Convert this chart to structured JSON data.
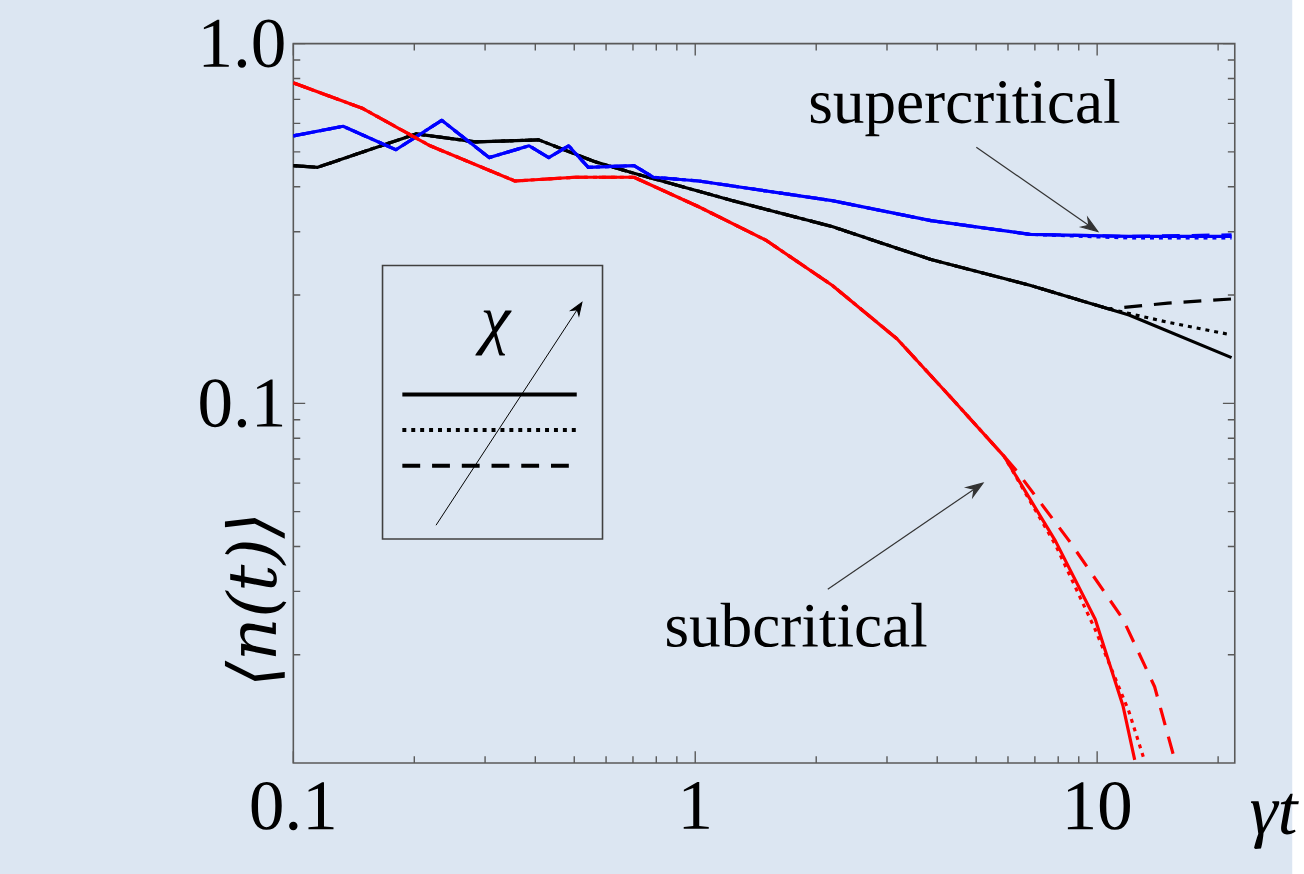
{
  "chart_data": {
    "type": "line",
    "xlabel": "γt",
    "ylabel": "⟨n(t)⟩",
    "log": "xy",
    "xlim": [
      0.1,
      22
    ],
    "ylim": [
      0.01,
      1
    ],
    "xticks": [
      0.1,
      1,
      10
    ],
    "yticks": [
      0.1,
      {
        "value": 1,
        "label": "1.0"
      }
    ],
    "annotations": [
      {
        "text": "supercritical",
        "x": 9.89,
        "y": 0.291
      },
      {
        "text": "subcritical",
        "x": 5.87,
        "y": 0.0712
      },
      "χ"
    ],
    "series": [
      {
        "color": "#000000",
        "line_style": "solid",
        "x": [
          0.1,
          0.115,
          0.202,
          0.284,
          0.408,
          0.561,
          0.704,
          1.24,
          2.19,
          3.86,
          6.8,
          12.0,
          21.6
        ],
        "values": [
          0.458,
          0.453,
          0.561,
          0.533,
          0.54,
          0.47,
          0.436,
          0.366,
          0.31,
          0.251,
          0.213,
          0.176,
          0.134
        ]
      },
      {
        "color": "#000000",
        "line_style": "dotted",
        "x": [
          0.1,
          0.115,
          0.202,
          0.284,
          0.408,
          0.561,
          0.704,
          1.24,
          2.19,
          3.86,
          6.8,
          10.7,
          15.0,
          21.6
        ],
        "values": [
          0.458,
          0.453,
          0.561,
          0.533,
          0.54,
          0.47,
          0.436,
          0.366,
          0.31,
          0.251,
          0.213,
          0.183,
          0.168,
          0.155
        ]
      },
      {
        "color": "#000000",
        "line_style": "dashed",
        "x": [
          0.1,
          0.115,
          0.202,
          0.284,
          0.408,
          0.561,
          0.704,
          1.24,
          2.19,
          3.86,
          6.8,
          10.7,
          15.0,
          21.6
        ],
        "values": [
          0.458,
          0.453,
          0.561,
          0.533,
          0.54,
          0.47,
          0.436,
          0.366,
          0.31,
          0.251,
          0.213,
          0.183,
          0.19,
          0.195
        ]
      },
      {
        "color": "#0000ff",
        "line_style": "solid",
        "x": [
          0.1,
          0.133,
          0.18,
          0.234,
          0.307,
          0.386,
          0.432,
          0.484,
          0.542,
          0.704,
          0.788,
          1.02,
          2.19,
          3.86,
          6.8,
          12.0,
          21.6
        ],
        "values": [
          0.554,
          0.589,
          0.507,
          0.612,
          0.482,
          0.52,
          0.482,
          0.52,
          0.453,
          0.458,
          0.425,
          0.415,
          0.366,
          0.322,
          0.295,
          0.291,
          0.291
        ]
      },
      {
        "color": "#0000ff",
        "line_style": "dotted",
        "x": [
          0.1,
          0.133,
          0.18,
          0.234,
          0.307,
          0.386,
          0.432,
          0.484,
          0.542,
          0.704,
          0.788,
          1.02,
          2.19,
          3.86,
          6.8,
          12.0,
          21.6
        ],
        "values": [
          0.554,
          0.589,
          0.507,
          0.612,
          0.482,
          0.52,
          0.482,
          0.52,
          0.453,
          0.458,
          0.425,
          0.415,
          0.366,
          0.322,
          0.295,
          0.288,
          0.288
        ]
      },
      {
        "color": "#0000ff",
        "line_style": "dashed",
        "x": [
          0.1,
          0.133,
          0.18,
          0.234,
          0.307,
          0.386,
          0.432,
          0.484,
          0.542,
          0.704,
          0.788,
          1.02,
          2.19,
          3.86,
          6.8,
          12.0,
          21.6
        ],
        "values": [
          0.554,
          0.589,
          0.507,
          0.612,
          0.482,
          0.52,
          0.482,
          0.52,
          0.453,
          0.458,
          0.425,
          0.415,
          0.366,
          0.322,
          0.295,
          0.291,
          0.294
        ]
      },
      {
        "color": "#ff0000",
        "line_style": "solid",
        "x": [
          0.1,
          0.149,
          0.219,
          0.356,
          0.501,
          0.704,
          1.02,
          1.5,
          2.19,
          3.18,
          4.32,
          5.87,
          7.88,
          9.89,
          11.6,
          12.4
        ],
        "values": [
          0.778,
          0.66,
          0.52,
          0.415,
          0.425,
          0.425,
          0.352,
          0.284,
          0.213,
          0.151,
          0.104,
          0.0712,
          0.0414,
          0.0251,
          0.0144,
          0.0102
        ]
      },
      {
        "color": "#ff0000",
        "line_style": "dotted",
        "x": [
          0.1,
          0.149,
          0.219,
          0.356,
          0.501,
          0.704,
          1.02,
          1.5,
          2.19,
          3.18,
          4.32,
          5.87,
          7.88,
          9.89,
          12.0,
          13.1
        ],
        "values": [
          0.778,
          0.66,
          0.52,
          0.415,
          0.425,
          0.425,
          0.352,
          0.284,
          0.213,
          0.151,
          0.104,
          0.0712,
          0.0404,
          0.0235,
          0.0139,
          0.0102
        ]
      },
      {
        "color": "#ff0000",
        "line_style": "dashed",
        "x": [
          0.1,
          0.149,
          0.219,
          0.356,
          0.501,
          0.704,
          1.02,
          1.5,
          2.19,
          3.18,
          4.32,
          5.87,
          6.28,
          8.53,
          11.6,
          13.9,
          15.6
        ],
        "values": [
          0.778,
          0.66,
          0.52,
          0.415,
          0.425,
          0.425,
          0.352,
          0.284,
          0.213,
          0.151,
          0.104,
          0.0712,
          0.0652,
          0.0414,
          0.0251,
          0.0163,
          0.0102
        ]
      }
    ]
  }
}
